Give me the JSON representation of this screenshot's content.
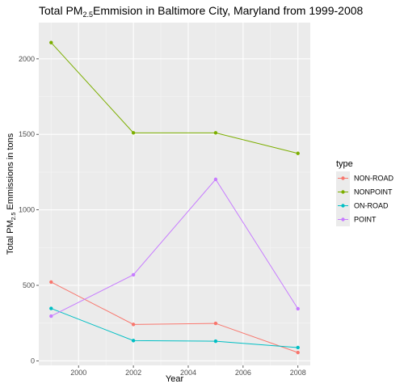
{
  "chart_data": {
    "type": "line",
    "title_main": "Total PM",
    "title_sub": "2.5",
    "title_rest": "Emmision in Baltimore City, Maryland from 1999-2008",
    "xlabel": "Year",
    "ylabel_main": "Total PM",
    "ylabel_sub": "2.5",
    "ylabel_rest": " Emmissions in tons",
    "xlim": [
      1998.55,
      2008.45
    ],
    "ylim": [
      -30,
      2240
    ],
    "x_ticks": [
      2000,
      2002,
      2004,
      2006,
      2008
    ],
    "y_ticks": [
      0,
      500,
      1000,
      1500,
      2000
    ],
    "x_tick_labels": [
      "2000",
      "2002",
      "2004",
      "2006",
      "2008"
    ],
    "y_tick_labels": [
      "0",
      "500",
      "1000",
      "1500",
      "2000"
    ],
    "x": [
      1999,
      2002,
      2005,
      2008
    ],
    "series": [
      {
        "name": "NON-ROAD",
        "color": "#F8766D",
        "values": [
          522,
          241,
          248,
          55
        ]
      },
      {
        "name": "NONPOINT",
        "color": "#7CAE00",
        "values": [
          2108,
          1510,
          1510,
          1374
        ]
      },
      {
        "name": "ON-ROAD",
        "color": "#00BFC4",
        "values": [
          347,
          134,
          130,
          88
        ]
      },
      {
        "name": "POINT",
        "color": "#C77CFF",
        "values": [
          296,
          570,
          1202,
          345
        ]
      }
    ],
    "legend_title": "type",
    "legend_position": "right",
    "grid": true
  }
}
